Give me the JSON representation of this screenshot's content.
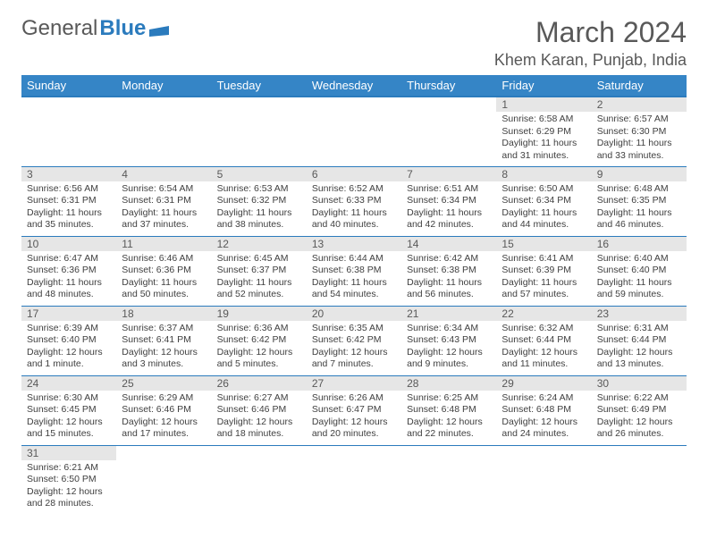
{
  "logo": {
    "text1": "General",
    "text2": "Blue"
  },
  "title": "March 2024",
  "location": "Khem Karan, Punjab, India",
  "colors": {
    "header_bg": "#3585c6",
    "header_border": "#2b7bbd",
    "daynum_bg": "#e6e6e6",
    "text": "#404040",
    "title_color": "#595959"
  },
  "weekdays": [
    "Sunday",
    "Monday",
    "Tuesday",
    "Wednesday",
    "Thursday",
    "Friday",
    "Saturday"
  ],
  "weeks": [
    [
      null,
      null,
      null,
      null,
      null,
      {
        "n": "1",
        "sr": "Sunrise: 6:58 AM",
        "ss": "Sunset: 6:29 PM",
        "dl": "Daylight: 11 hours and 31 minutes."
      },
      {
        "n": "2",
        "sr": "Sunrise: 6:57 AM",
        "ss": "Sunset: 6:30 PM",
        "dl": "Daylight: 11 hours and 33 minutes."
      }
    ],
    [
      {
        "n": "3",
        "sr": "Sunrise: 6:56 AM",
        "ss": "Sunset: 6:31 PM",
        "dl": "Daylight: 11 hours and 35 minutes."
      },
      {
        "n": "4",
        "sr": "Sunrise: 6:54 AM",
        "ss": "Sunset: 6:31 PM",
        "dl": "Daylight: 11 hours and 37 minutes."
      },
      {
        "n": "5",
        "sr": "Sunrise: 6:53 AM",
        "ss": "Sunset: 6:32 PM",
        "dl": "Daylight: 11 hours and 38 minutes."
      },
      {
        "n": "6",
        "sr": "Sunrise: 6:52 AM",
        "ss": "Sunset: 6:33 PM",
        "dl": "Daylight: 11 hours and 40 minutes."
      },
      {
        "n": "7",
        "sr": "Sunrise: 6:51 AM",
        "ss": "Sunset: 6:34 PM",
        "dl": "Daylight: 11 hours and 42 minutes."
      },
      {
        "n": "8",
        "sr": "Sunrise: 6:50 AM",
        "ss": "Sunset: 6:34 PM",
        "dl": "Daylight: 11 hours and 44 minutes."
      },
      {
        "n": "9",
        "sr": "Sunrise: 6:48 AM",
        "ss": "Sunset: 6:35 PM",
        "dl": "Daylight: 11 hours and 46 minutes."
      }
    ],
    [
      {
        "n": "10",
        "sr": "Sunrise: 6:47 AM",
        "ss": "Sunset: 6:36 PM",
        "dl": "Daylight: 11 hours and 48 minutes."
      },
      {
        "n": "11",
        "sr": "Sunrise: 6:46 AM",
        "ss": "Sunset: 6:36 PM",
        "dl": "Daylight: 11 hours and 50 minutes."
      },
      {
        "n": "12",
        "sr": "Sunrise: 6:45 AM",
        "ss": "Sunset: 6:37 PM",
        "dl": "Daylight: 11 hours and 52 minutes."
      },
      {
        "n": "13",
        "sr": "Sunrise: 6:44 AM",
        "ss": "Sunset: 6:38 PM",
        "dl": "Daylight: 11 hours and 54 minutes."
      },
      {
        "n": "14",
        "sr": "Sunrise: 6:42 AM",
        "ss": "Sunset: 6:38 PM",
        "dl": "Daylight: 11 hours and 56 minutes."
      },
      {
        "n": "15",
        "sr": "Sunrise: 6:41 AM",
        "ss": "Sunset: 6:39 PM",
        "dl": "Daylight: 11 hours and 57 minutes."
      },
      {
        "n": "16",
        "sr": "Sunrise: 6:40 AM",
        "ss": "Sunset: 6:40 PM",
        "dl": "Daylight: 11 hours and 59 minutes."
      }
    ],
    [
      {
        "n": "17",
        "sr": "Sunrise: 6:39 AM",
        "ss": "Sunset: 6:40 PM",
        "dl": "Daylight: 12 hours and 1 minute."
      },
      {
        "n": "18",
        "sr": "Sunrise: 6:37 AM",
        "ss": "Sunset: 6:41 PM",
        "dl": "Daylight: 12 hours and 3 minutes."
      },
      {
        "n": "19",
        "sr": "Sunrise: 6:36 AM",
        "ss": "Sunset: 6:42 PM",
        "dl": "Daylight: 12 hours and 5 minutes."
      },
      {
        "n": "20",
        "sr": "Sunrise: 6:35 AM",
        "ss": "Sunset: 6:42 PM",
        "dl": "Daylight: 12 hours and 7 minutes."
      },
      {
        "n": "21",
        "sr": "Sunrise: 6:34 AM",
        "ss": "Sunset: 6:43 PM",
        "dl": "Daylight: 12 hours and 9 minutes."
      },
      {
        "n": "22",
        "sr": "Sunrise: 6:32 AM",
        "ss": "Sunset: 6:44 PM",
        "dl": "Daylight: 12 hours and 11 minutes."
      },
      {
        "n": "23",
        "sr": "Sunrise: 6:31 AM",
        "ss": "Sunset: 6:44 PM",
        "dl": "Daylight: 12 hours and 13 minutes."
      }
    ],
    [
      {
        "n": "24",
        "sr": "Sunrise: 6:30 AM",
        "ss": "Sunset: 6:45 PM",
        "dl": "Daylight: 12 hours and 15 minutes."
      },
      {
        "n": "25",
        "sr": "Sunrise: 6:29 AM",
        "ss": "Sunset: 6:46 PM",
        "dl": "Daylight: 12 hours and 17 minutes."
      },
      {
        "n": "26",
        "sr": "Sunrise: 6:27 AM",
        "ss": "Sunset: 6:46 PM",
        "dl": "Daylight: 12 hours and 18 minutes."
      },
      {
        "n": "27",
        "sr": "Sunrise: 6:26 AM",
        "ss": "Sunset: 6:47 PM",
        "dl": "Daylight: 12 hours and 20 minutes."
      },
      {
        "n": "28",
        "sr": "Sunrise: 6:25 AM",
        "ss": "Sunset: 6:48 PM",
        "dl": "Daylight: 12 hours and 22 minutes."
      },
      {
        "n": "29",
        "sr": "Sunrise: 6:24 AM",
        "ss": "Sunset: 6:48 PM",
        "dl": "Daylight: 12 hours and 24 minutes."
      },
      {
        "n": "30",
        "sr": "Sunrise: 6:22 AM",
        "ss": "Sunset: 6:49 PM",
        "dl": "Daylight: 12 hours and 26 minutes."
      }
    ],
    [
      {
        "n": "31",
        "sr": "Sunrise: 6:21 AM",
        "ss": "Sunset: 6:50 PM",
        "dl": "Daylight: 12 hours and 28 minutes."
      },
      null,
      null,
      null,
      null,
      null,
      null
    ]
  ]
}
